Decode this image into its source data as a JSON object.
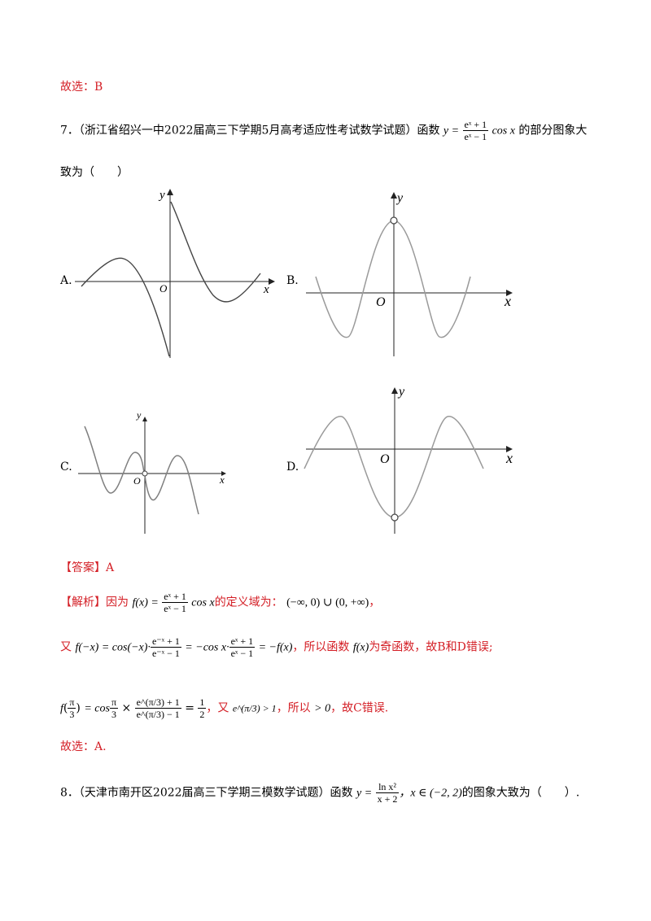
{
  "prev_conclusion": "故选：B",
  "q7": {
    "number": "7．",
    "source": "（浙江省绍兴一中2022届高三下学期5月高考适应性考试数学试题）函数",
    "func_y": "y =",
    "func_num": "eˣ + 1",
    "func_den": "eˣ − 1",
    "func_tail": "cos x",
    "after_func": "的部分图象大",
    "line2": "致为（　　）",
    "options": [
      {
        "label": "A.",
        "axis_x": "x",
        "axis_y": "y",
        "origin": "O"
      },
      {
        "label": "B.",
        "axis_x": "x",
        "axis_y": "y",
        "origin": "O"
      },
      {
        "label": "C.",
        "axis_x": "x",
        "axis_y": "y",
        "origin": "O"
      },
      {
        "label": "D.",
        "axis_x": "x",
        "axis_y": "y",
        "origin": "O"
      }
    ]
  },
  "answer": {
    "label": "【答案】A"
  },
  "analysis": {
    "label": "【解析】",
    "line1_a": "因为",
    "line1_fx": "f(x) =",
    "line1_num": "eˣ + 1",
    "line1_den": "eˣ − 1",
    "line1_cos": "cos x",
    "line1_b": "的定义域为：",
    "line1_domain": "(−∞, 0) ∪ (0, +∞)",
    "line1_end": "，",
    "line2_a": "又",
    "line2_expr1": "f(−x) = cos(−x)·",
    "line2_num1": "e⁻ˣ + 1",
    "line2_den1": "e⁻ˣ − 1",
    "line2_expr2": "= −cos x·",
    "line2_num2": "eˣ + 1",
    "line2_den2": "eˣ − 1",
    "line2_expr3": "= −f(x)",
    "line2_b": "，所以函数",
    "line2_fx": "f(x)",
    "line2_c": "为奇函数，故B和D错误;",
    "line3_f": "f",
    "line3_arg_num": "π",
    "line3_arg_den": "3",
    "line3_eq1": "= cos",
    "line3_pi_num": "π",
    "line3_pi_den": "3",
    "line3_times": "×",
    "line3_num": "e^(π/3) + 1",
    "line3_den": "e^(π/3) − 1",
    "line3_eq2": "=",
    "line3_half_num": "1",
    "line3_half_den": "2",
    "line3_b": "，又",
    "line3_ineq": "e^(π/3) > 1",
    "line3_c": "，所以",
    "line3_gt": "> 0",
    "line3_d": "，故C错误.",
    "conclusion": "故选：A."
  },
  "q8": {
    "number": "8．",
    "source": "（天津市南开区2022届高三下学期三模数学试题）函数",
    "func_y": "y =",
    "func_num": "ln x²",
    "func_den": "x + 2",
    "domain": "，x ∈ (−2, 2)",
    "tail": "的图象大致为（　　）."
  }
}
